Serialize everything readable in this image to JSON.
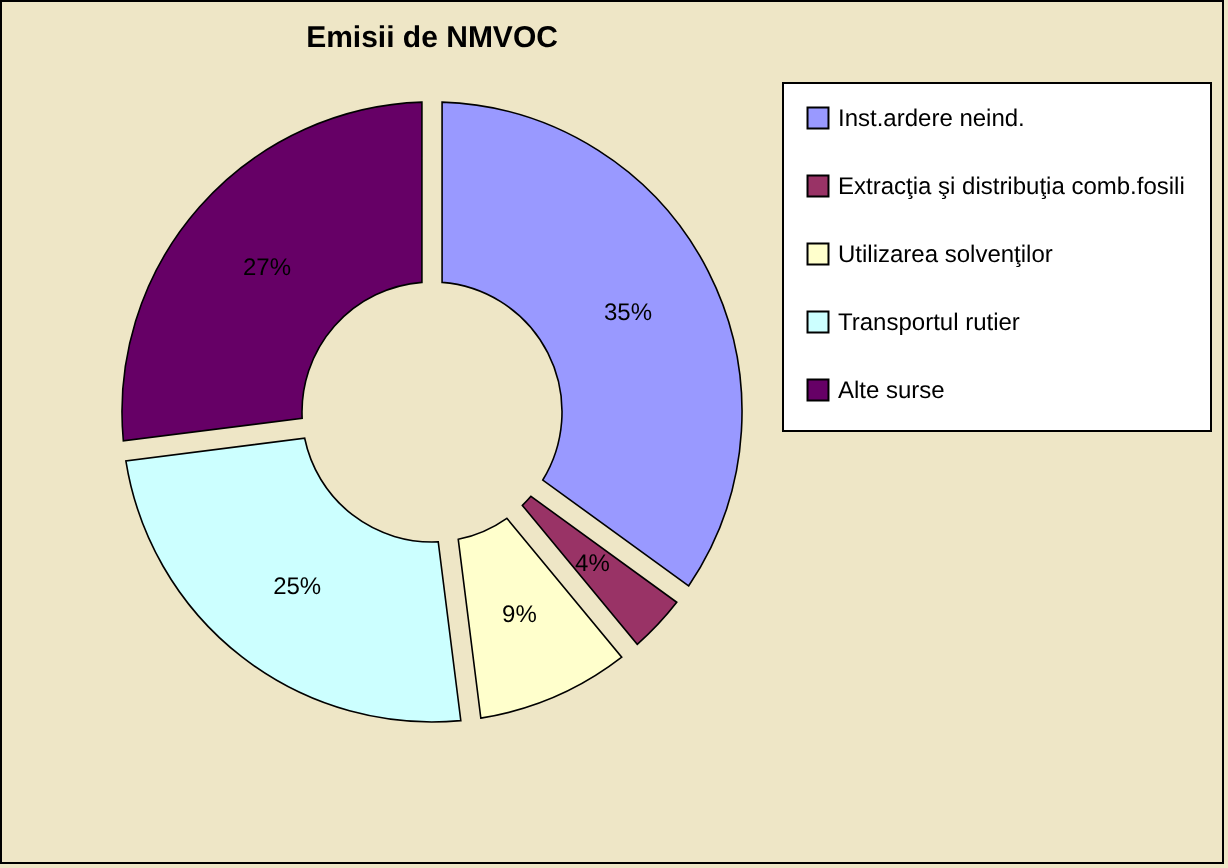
{
  "chart_data": {
    "type": "donut",
    "title": "Emisii de NMVOC",
    "categories": [
      "Inst.ardere neind.",
      "Extracţia şi distribuţia comb.fosili",
      "Utilizarea solvenţilor",
      "Transportul rutier",
      "Alte surse"
    ],
    "values": [
      35,
      4,
      9,
      25,
      27
    ],
    "colors": [
      "#9999ff",
      "#993366",
      "#ffffcc",
      "#ccffff",
      "#660066"
    ],
    "value_labels": [
      "35%",
      "4%",
      "9%",
      "25%",
      "27%"
    ],
    "legend": "right"
  }
}
